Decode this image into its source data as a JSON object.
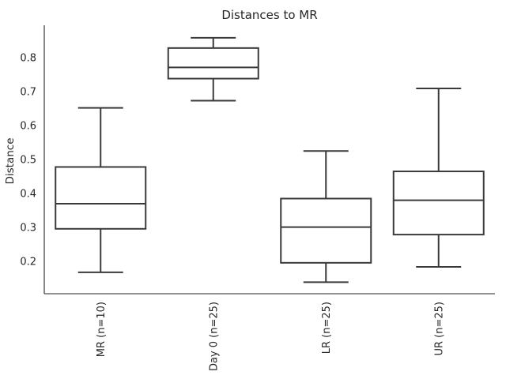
{
  "chart_data": {
    "type": "box",
    "title": "Distances to MR",
    "xlabel": "",
    "ylabel": "Distance",
    "ylim": [
      0.105,
      0.895
    ],
    "yticks": [
      0.2,
      0.3,
      0.4,
      0.5,
      0.6,
      0.7,
      0.8
    ],
    "categories": [
      "MR (n=10)",
      "Day 0 (n=25)",
      "LR (n=25)",
      "UR (n=25)"
    ],
    "boxes": [
      {
        "category": "MR (n=10)",
        "whisker_low": 0.168,
        "q1": 0.296,
        "median": 0.37,
        "q3": 0.478,
        "whisker_high": 0.652
      },
      {
        "category": "Day 0 (n=25)",
        "whisker_low": 0.673,
        "q1": 0.738,
        "median": 0.771,
        "q3": 0.828,
        "whisker_high": 0.858
      },
      {
        "category": "LR (n=25)",
        "whisker_low": 0.139,
        "q1": 0.196,
        "median": 0.301,
        "q3": 0.385,
        "whisker_high": 0.525
      },
      {
        "category": "UR (n=25)",
        "whisker_low": 0.184,
        "q1": 0.279,
        "median": 0.38,
        "q3": 0.465,
        "whisker_high": 0.709
      }
    ],
    "grid": false,
    "legend": "none"
  }
}
